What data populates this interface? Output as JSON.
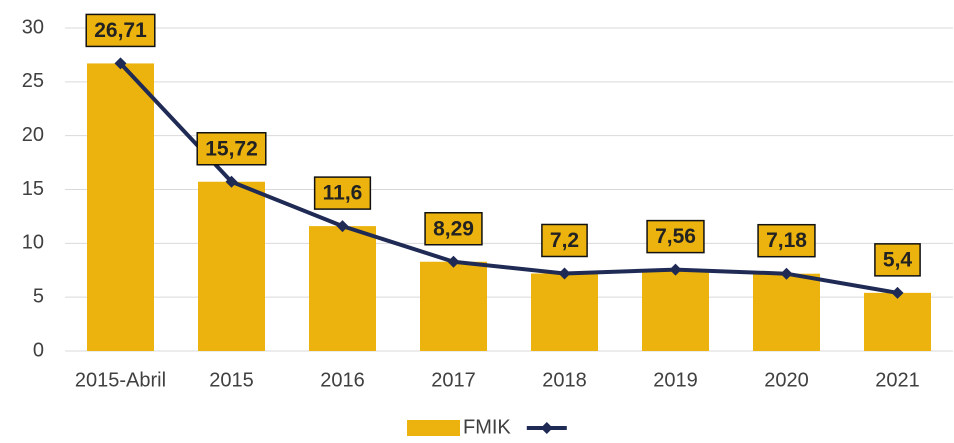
{
  "chart_data": {
    "type": "combo",
    "categories": [
      "2015-Abril",
      "2015",
      "2016",
      "2017",
      "2018",
      "2019",
      "2020",
      "2021"
    ],
    "series": [
      {
        "name": "FMIK",
        "type": "bar",
        "color": "#ecb30f",
        "values": [
          26.71,
          15.72,
          11.6,
          8.29,
          7.2,
          7.56,
          7.18,
          5.4
        ]
      },
      {
        "type": "line",
        "color": "#1f2a55",
        "values": [
          26.71,
          15.72,
          11.6,
          8.29,
          7.2,
          7.56,
          7.18,
          5.4
        ],
        "value_labels": [
          "26,71",
          "15,72",
          "11,6",
          "8,29",
          "7,2",
          "7,56",
          "7,18",
          "5,4"
        ]
      }
    ],
    "ylim": [
      0,
      30
    ],
    "yticks": [
      0,
      5,
      10,
      15,
      20,
      25,
      30
    ],
    "grid": true,
    "legend": "bottom"
  }
}
